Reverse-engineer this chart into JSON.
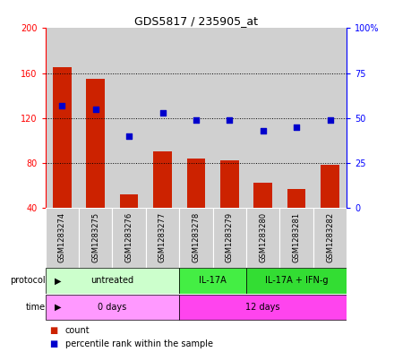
{
  "title": "GDS5817 / 235905_at",
  "samples": [
    "GSM1283274",
    "GSM1283275",
    "GSM1283276",
    "GSM1283277",
    "GSM1283278",
    "GSM1283279",
    "GSM1283280",
    "GSM1283281",
    "GSM1283282"
  ],
  "counts": [
    165,
    155,
    52,
    90,
    84,
    82,
    62,
    57,
    78
  ],
  "percentiles": [
    57,
    55,
    40,
    53,
    49,
    49,
    43,
    45,
    49
  ],
  "ymin": 40,
  "ymax": 200,
  "yticks": [
    40,
    80,
    120,
    160,
    200
  ],
  "y2min": 0,
  "y2max": 100,
  "y2ticks": [
    0,
    25,
    50,
    75,
    100
  ],
  "y2labels": [
    "0",
    "25",
    "50",
    "75",
    "100%"
  ],
  "bar_color": "#cc2200",
  "dot_color": "#0000cc",
  "protocol_groups": [
    {
      "label": "untreated",
      "start": 0,
      "end": 4,
      "color": "#ccffcc"
    },
    {
      "label": "IL-17A",
      "start": 4,
      "end": 6,
      "color": "#44ee44"
    },
    {
      "label": "IL-17A + IFN-g",
      "start": 6,
      "end": 9,
      "color": "#33dd33"
    }
  ],
  "time_groups": [
    {
      "label": "0 days",
      "start": 0,
      "end": 4,
      "color": "#ff99ff"
    },
    {
      "label": "12 days",
      "start": 4,
      "end": 9,
      "color": "#ff44ee"
    }
  ],
  "protocol_label": "protocol",
  "time_label": "time",
  "legend_count": "count",
  "legend_percentile": "percentile rank within the sample",
  "bar_width": 0.55,
  "bg_color": "#ffffff",
  "sample_bg_color": "#d0d0d0",
  "plot_bg": "#ffffff"
}
